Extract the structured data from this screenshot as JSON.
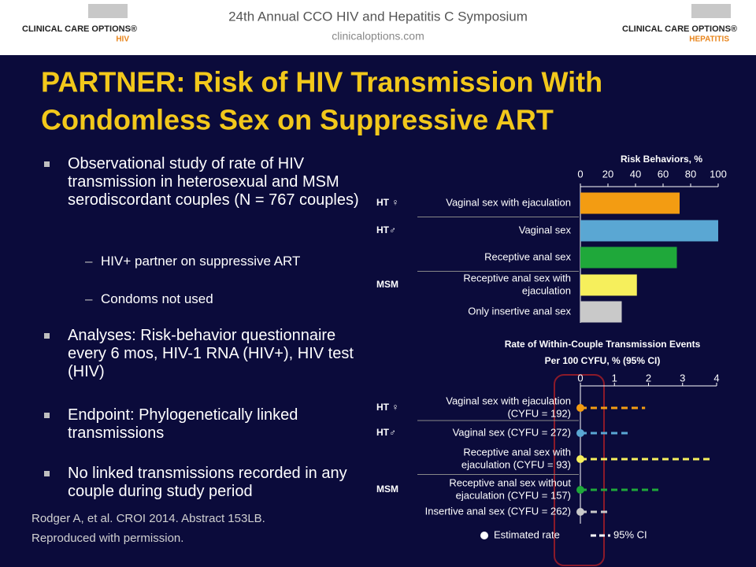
{
  "header": {
    "left_logo": {
      "name": "CLINICAL CARE OPTIONS®",
      "sub": "HIV"
    },
    "event": "24th Annual CCO HIV and Hepatitis C Symposium",
    "site": "clinicaloptions.com",
    "right_logo": {
      "name": "CLINICAL CARE OPTIONS®",
      "sub": "HEPATITIS"
    }
  },
  "title": [
    "PARTNER: Risk of HIV Transmission With",
    "Condomless Sex on Suppressive ART"
  ],
  "bullets": [
    {
      "text": "Observational study of rate of HIV transmission in heterosexual and MSM serodiscordant couples (N = 767 couples)",
      "sub": [
        "HIV+ partner on suppressive ART",
        "Condoms not used"
      ]
    },
    {
      "text": "Analyses: Risk-behavior questionnaire every 6 mos, HIV-1 RNA (HIV+), HIV test (HIV)"
    },
    {
      "text": "Endpoint: Phylogenetically linked transmissions"
    },
    {
      "text": "No linked transmissions recorded in any couple during study period"
    }
  ],
  "citation": [
    "Rodger A, et al. CROI 2014. Abstract 153LB.",
    "Reproduced with permission."
  ],
  "chart_data": [
    {
      "type": "bar",
      "title": [
        "Risk Behaviors, %"
      ],
      "groups": [
        "HT ♀",
        "HT♂",
        null,
        "MSM",
        null
      ],
      "categories": [
        [
          "Vaginal sex with ejaculation"
        ],
        [
          "Vaginal sex"
        ],
        [
          "Receptive anal sex"
        ],
        [
          "Receptive anal sex with",
          "ejaculation"
        ],
        [
          "Only insertive anal sex"
        ]
      ],
      "values": [
        72,
        100,
        70,
        41,
        30
      ],
      "colors": [
        "#f39c12",
        "#5aa7d3",
        "#1fa83a",
        "#f6ef5c",
        "#c9c9c9"
      ],
      "xlim": [
        0,
        100
      ],
      "xticks": [
        0,
        20,
        40,
        60,
        80,
        100
      ]
    },
    {
      "type": "dot_ci",
      "title": [
        "Rate of Within-Couple Transmission Events",
        "Per 100 CYFU, % (95% CI)"
      ],
      "groups": [
        "HT ♀",
        "HT♂",
        null,
        "MSM",
        null
      ],
      "categories": [
        [
          "Vaginal sex with ejaculation",
          "(CYFU = 192)"
        ],
        [
          "Vaginal sex (CYFU = 272)"
        ],
        [
          "Receptive anal sex with",
          "ejaculation (CYFU = 93)"
        ],
        [
          "Receptive anal sex without",
          "ejaculation (CYFU = 157)"
        ],
        [
          "Insertive anal sex (CYFU = 262)"
        ]
      ],
      "values": [
        0,
        0,
        0,
        0,
        0
      ],
      "ci_low": [
        0,
        0,
        0,
        0,
        0
      ],
      "ci_high": [
        1.9,
        1.4,
        3.9,
        2.3,
        0.8
      ],
      "colors": [
        "#f39c12",
        "#5aa7d3",
        "#f6ef5c",
        "#1fa83a",
        "#c9c9c9"
      ],
      "xlim": [
        0,
        4
      ],
      "xticks": [
        0,
        1,
        2,
        3,
        4
      ],
      "legend": [
        "Estimated rate",
        "95% CI"
      ]
    }
  ]
}
